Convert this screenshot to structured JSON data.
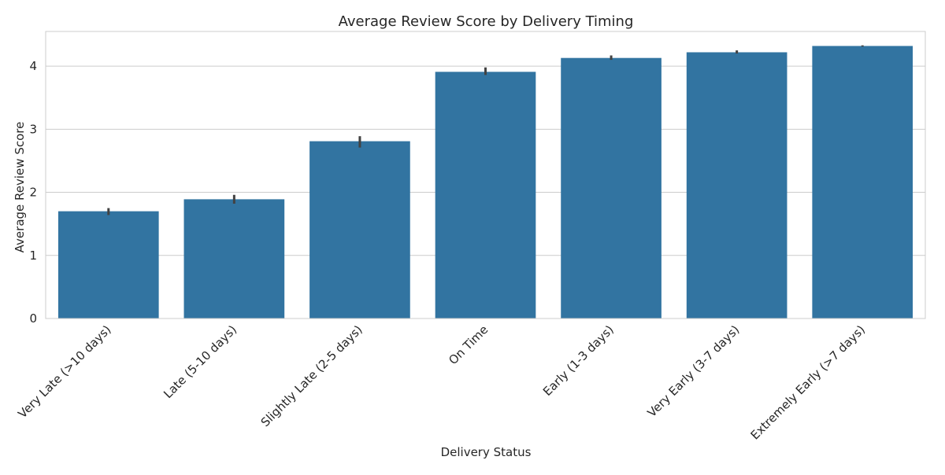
{
  "chart_data": {
    "type": "bar",
    "title": "Average Review Score by Delivery Timing",
    "xlabel": "Delivery Status",
    "ylabel": "Average Review Score",
    "categories": [
      "Very Late (>10 days)",
      "Late (5-10 days)",
      "Slightly Late (2-5 days)",
      "On Time",
      "Early (1-3 days)",
      "Very Early (3-7 days)",
      "Extremely Early (>7 days)"
    ],
    "values": [
      1.7,
      1.89,
      2.81,
      3.91,
      4.13,
      4.22,
      4.32
    ],
    "error_low": [
      1.64,
      1.82,
      2.71,
      3.86,
      4.1,
      4.2,
      4.31
    ],
    "error_high": [
      1.75,
      1.96,
      2.89,
      3.98,
      4.17,
      4.25,
      4.33
    ],
    "ylim": [
      0,
      4.55
    ],
    "yticks": [
      "0",
      "1",
      "2",
      "3",
      "4"
    ],
    "grid": true,
    "bar_color": "#3274a1",
    "error_color": "#424242",
    "grid_color": "#cccccc",
    "text_color": "#262626"
  }
}
